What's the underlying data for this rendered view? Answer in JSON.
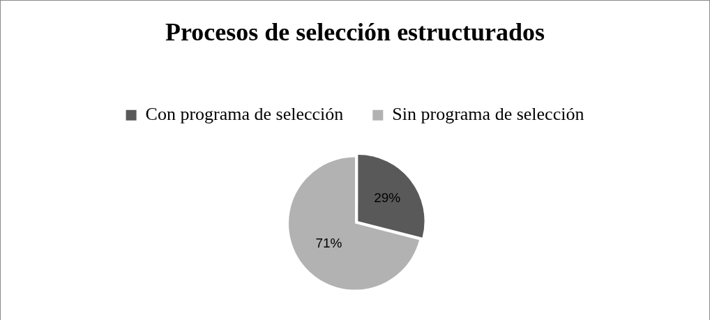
{
  "chart_data": {
    "type": "pie",
    "title": "Procesos de selección estructurados",
    "categories": [
      "Con programa de selección",
      "Sin programa de selección"
    ],
    "values": [
      29,
      71
    ],
    "value_labels": [
      "29%",
      "71%"
    ],
    "colors": [
      "#595959",
      "#b2b2b2"
    ],
    "legend": "top"
  }
}
